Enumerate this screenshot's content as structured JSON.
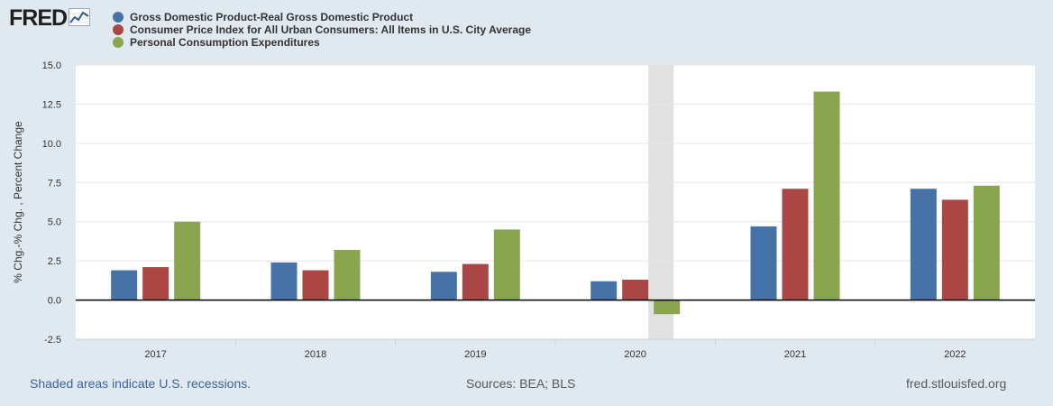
{
  "header": {
    "logo_text": "FRED",
    "logo_icon": "line-chart-icon"
  },
  "colors": {
    "gdp": "#4572a7",
    "cpi": "#aa4643",
    "pce": "#89a54e",
    "recession": "#e1e1e1",
    "background": "#e1e9f0"
  },
  "chart_data": {
    "type": "bar",
    "title": "",
    "xlabel": "",
    "ylabel": "% Chg.-% Chg. , Percent Change",
    "ylim": [
      -2.5,
      15.0
    ],
    "yticks": [
      "-2.5",
      "0.0",
      "2.5",
      "5.0",
      "7.5",
      "10.0",
      "12.5",
      "15.0"
    ],
    "ytick_values": [
      -2.5,
      0,
      2.5,
      5,
      7.5,
      10,
      12.5,
      15
    ],
    "categories": [
      "2017",
      "2018",
      "2019",
      "2020",
      "2021",
      "2022"
    ],
    "series": [
      {
        "name": "Gross Domestic Product-Real Gross Domestic Product",
        "color": "#4572a7",
        "values": [
          1.9,
          2.4,
          1.8,
          1.2,
          4.7,
          7.1
        ]
      },
      {
        "name": "Consumer Price Index for All Urban Consumers: All Items in U.S. City Average",
        "color": "#aa4643",
        "values": [
          2.1,
          1.9,
          2.3,
          1.3,
          7.1,
          6.4
        ]
      },
      {
        "name": "Personal Consumption Expenditures",
        "color": "#89a54e",
        "values": [
          5.0,
          3.2,
          4.5,
          -0.9,
          13.3,
          7.3
        ]
      }
    ],
    "recession_label": "2020",
    "grid": true
  },
  "footer": {
    "recession_note": "Shaded areas indicate U.S. recessions.",
    "sources": "Sources: BEA; BLS",
    "site": "fred.stlouisfed.org"
  }
}
